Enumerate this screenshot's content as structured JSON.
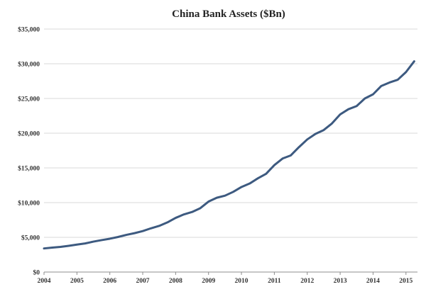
{
  "chart_data": {
    "type": "line",
    "title": "China Bank Assets ($Bn)",
    "xlabel": "",
    "ylabel": "",
    "ylim": [
      0,
      35000
    ],
    "y_ticks": [
      0,
      5000,
      10000,
      15000,
      20000,
      25000,
      30000,
      35000
    ],
    "y_tick_labels": [
      "$0",
      "$5,000",
      "$10,000",
      "$15,000",
      "$20,000",
      "$25,000",
      "$30,000",
      "$35,000"
    ],
    "x_tick_labels": [
      "2004",
      "2005",
      "2006",
      "2007",
      "2008",
      "2009",
      "2010",
      "2011",
      "2012",
      "2013",
      "2014",
      "2015"
    ],
    "xlim": [
      2004.0,
      2015.35
    ],
    "grid": {
      "horizontal": true,
      "vertical": false
    },
    "legend": "none",
    "series": [
      {
        "color": "#3d5a80",
        "points": [
          [
            2004.0,
            3400
          ],
          [
            2004.25,
            3520
          ],
          [
            2004.5,
            3620
          ],
          [
            2004.75,
            3780
          ],
          [
            2005.0,
            3950
          ],
          [
            2005.25,
            4120
          ],
          [
            2005.5,
            4380
          ],
          [
            2005.75,
            4600
          ],
          [
            2006.0,
            4800
          ],
          [
            2006.25,
            5050
          ],
          [
            2006.5,
            5350
          ],
          [
            2006.75,
            5600
          ],
          [
            2007.0,
            5900
          ],
          [
            2007.25,
            6300
          ],
          [
            2007.5,
            6650
          ],
          [
            2007.75,
            7150
          ],
          [
            2008.0,
            7800
          ],
          [
            2008.25,
            8300
          ],
          [
            2008.5,
            8650
          ],
          [
            2008.75,
            9200
          ],
          [
            2009.0,
            10150
          ],
          [
            2009.25,
            10700
          ],
          [
            2009.5,
            11000
          ],
          [
            2009.75,
            11550
          ],
          [
            2010.0,
            12250
          ],
          [
            2010.25,
            12750
          ],
          [
            2010.5,
            13500
          ],
          [
            2010.75,
            14150
          ],
          [
            2011.0,
            15400
          ],
          [
            2011.25,
            16350
          ],
          [
            2011.5,
            16800
          ],
          [
            2011.75,
            18000
          ],
          [
            2012.0,
            19100
          ],
          [
            2012.25,
            19900
          ],
          [
            2012.5,
            20450
          ],
          [
            2012.75,
            21400
          ],
          [
            2013.0,
            22700
          ],
          [
            2013.25,
            23450
          ],
          [
            2013.5,
            23900
          ],
          [
            2013.75,
            25000
          ],
          [
            2014.0,
            25600
          ],
          [
            2014.25,
            26800
          ],
          [
            2014.5,
            27300
          ],
          [
            2014.75,
            27700
          ],
          [
            2015.0,
            28800
          ],
          [
            2015.25,
            30350
          ]
        ]
      }
    ]
  }
}
